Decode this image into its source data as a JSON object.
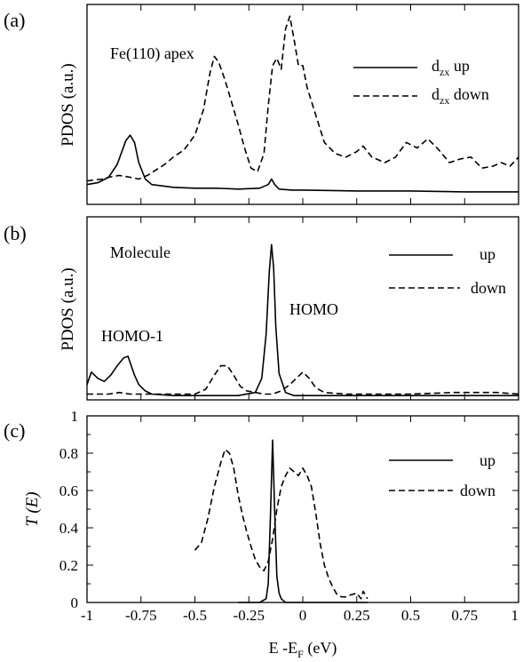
{
  "figure": {
    "xlabel_main": "E -E",
    "xlabel_sub": "F",
    "xlabel_unit": " (eV)",
    "x_ticks": [
      "-1",
      "-0.75",
      "-0.5",
      "-0.25",
      "0",
      "0.25",
      "0.5",
      "0.75",
      "1"
    ]
  },
  "chart_data": [
    {
      "type": "line",
      "panel_label": "(a)",
      "annotation": "Fe(110) apex",
      "ylabel": "PDOS (a.u.)",
      "xlim": [
        -1,
        1
      ],
      "ylim": [
        0,
        1
      ],
      "legend_position": "top-right",
      "legend": [
        {
          "main": "d",
          "sub": "zx",
          "suffix": " up",
          "style": "solid"
        },
        {
          "main": "d",
          "sub": "zx",
          "suffix": " down",
          "style": "dashed"
        }
      ],
      "series": [
        {
          "name": "dzx up",
          "style": "solid",
          "x": [
            -1,
            -0.95,
            -0.9,
            -0.86,
            -0.82,
            -0.8,
            -0.78,
            -0.76,
            -0.73,
            -0.7,
            -0.6,
            -0.5,
            -0.4,
            -0.3,
            -0.2,
            -0.16,
            -0.145,
            -0.13,
            -0.11,
            -0.05,
            0,
            0.25,
            0.5,
            0.75,
            1
          ],
          "y": [
            0.05,
            0.06,
            0.09,
            0.16,
            0.29,
            0.32,
            0.28,
            0.17,
            0.08,
            0.05,
            0.035,
            0.03,
            0.03,
            0.025,
            0.03,
            0.05,
            0.08,
            0.05,
            0.025,
            0.02,
            0.02,
            0.015,
            0.015,
            0.01,
            0.01
          ]
        },
        {
          "name": "dzx down",
          "style": "dashed",
          "x": [
            -1,
            -0.93,
            -0.9,
            -0.85,
            -0.8,
            -0.76,
            -0.72,
            -0.68,
            -0.64,
            -0.6,
            -0.55,
            -0.5,
            -0.46,
            -0.43,
            -0.41,
            -0.39,
            -0.36,
            -0.33,
            -0.3,
            -0.27,
            -0.24,
            -0.21,
            -0.18,
            -0.16,
            -0.14,
            -0.12,
            -0.1,
            -0.08,
            -0.06,
            -0.04,
            -0.02,
            0,
            0.02,
            0.06,
            0.1,
            0.15,
            0.2,
            0.25,
            0.28,
            0.32,
            0.38,
            0.43,
            0.48,
            0.53,
            0.58,
            0.63,
            0.68,
            0.73,
            0.78,
            0.83,
            0.88,
            0.92,
            0.96,
            1
          ],
          "y": [
            0.07,
            0.08,
            0.09,
            0.1,
            0.09,
            0.08,
            0.1,
            0.13,
            0.16,
            0.2,
            0.24,
            0.32,
            0.46,
            0.66,
            0.75,
            0.72,
            0.62,
            0.5,
            0.38,
            0.25,
            0.14,
            0.12,
            0.22,
            0.48,
            0.7,
            0.74,
            0.68,
            0.9,
            0.97,
            0.84,
            0.7,
            0.7,
            0.58,
            0.43,
            0.28,
            0.22,
            0.2,
            0.23,
            0.26,
            0.2,
            0.17,
            0.2,
            0.28,
            0.25,
            0.3,
            0.24,
            0.17,
            0.19,
            0.2,
            0.14,
            0.15,
            0.17,
            0.15,
            0.2
          ]
        }
      ]
    },
    {
      "type": "line",
      "panel_label": "(b)",
      "annotation": "Molecule",
      "ylabel": "PDOS (a.u.)",
      "peak_labels": [
        "HOMO-1",
        "HOMO"
      ],
      "xlim": [
        -1,
        1
      ],
      "ylim": [
        0,
        1
      ],
      "legend_position": "top-right",
      "legend": [
        {
          "main": "up",
          "sub": "",
          "suffix": "",
          "style": "solid"
        },
        {
          "main": "down",
          "sub": "",
          "suffix": "",
          "style": "dashed"
        }
      ],
      "series": [
        {
          "name": "up",
          "style": "solid",
          "x": [
            -1,
            -0.98,
            -0.95,
            -0.92,
            -0.89,
            -0.86,
            -0.83,
            -0.81,
            -0.8,
            -0.78,
            -0.76,
            -0.73,
            -0.7,
            -0.6,
            -0.5,
            -0.4,
            -0.3,
            -0.22,
            -0.19,
            -0.17,
            -0.155,
            -0.145,
            -0.135,
            -0.125,
            -0.11,
            -0.08,
            -0.04,
            0,
            0.1,
            0.3,
            0.5,
            0.7,
            0.9,
            1
          ],
          "y": [
            0.08,
            0.16,
            0.12,
            0.1,
            0.14,
            0.2,
            0.25,
            0.26,
            0.22,
            0.14,
            0.08,
            0.04,
            0.02,
            0.01,
            0.01,
            0.01,
            0.01,
            0.03,
            0.12,
            0.4,
            0.8,
            0.97,
            0.82,
            0.45,
            0.15,
            0.03,
            0.01,
            0.01,
            0.01,
            0.01,
            0.01,
            0.01,
            0.01,
            0.01
          ]
        },
        {
          "name": "down",
          "style": "dashed",
          "x": [
            -1,
            -0.95,
            -0.9,
            -0.85,
            -0.8,
            -0.75,
            -0.7,
            -0.6,
            -0.5,
            -0.45,
            -0.41,
            -0.38,
            -0.35,
            -0.32,
            -0.29,
            -0.26,
            -0.22,
            -0.18,
            -0.14,
            -0.1,
            -0.06,
            -0.03,
            0,
            0.03,
            0.06,
            0.1,
            0.2,
            0.3,
            0.5,
            0.7,
            0.9,
            1
          ],
          "y": [
            0.02,
            0.02,
            0.02,
            0.03,
            0.02,
            0.02,
            0.02,
            0.02,
            0.02,
            0.05,
            0.14,
            0.2,
            0.2,
            0.14,
            0.07,
            0.04,
            0.03,
            0.02,
            0.02,
            0.04,
            0.08,
            0.12,
            0.16,
            0.12,
            0.06,
            0.03,
            0.02,
            0.02,
            0.02,
            0.03,
            0.03,
            0.02
          ]
        }
      ]
    },
    {
      "type": "line",
      "panel_label": "(c)",
      "ylabel": "T (E)",
      "xlabel": "E -EF (eV)",
      "xlim": [
        -1,
        1
      ],
      "ylim": [
        0,
        1
      ],
      "y_ticks": [
        "0",
        "0.2",
        "0.4",
        "0.6",
        "0.8",
        "1"
      ],
      "legend_position": "top-right",
      "legend": [
        {
          "main": "up",
          "sub": "",
          "suffix": "",
          "style": "solid"
        },
        {
          "main": "down",
          "sub": "",
          "suffix": "",
          "style": "dashed"
        }
      ],
      "series": [
        {
          "name": "up",
          "style": "solid",
          "x": [
            -0.3,
            -0.2,
            -0.17,
            -0.16,
            -0.15,
            -0.14,
            -0.13,
            -0.12,
            -0.11,
            -0.1,
            -0.08,
            0,
            0.3
          ],
          "y": [
            0,
            0,
            0.02,
            0.1,
            0.45,
            0.87,
            0.48,
            0.14,
            0.05,
            0.02,
            0,
            0,
            0
          ]
        },
        {
          "name": "down",
          "style": "dashed",
          "x": [
            -0.5,
            -0.47,
            -0.44,
            -0.41,
            -0.38,
            -0.36,
            -0.34,
            -0.32,
            -0.3,
            -0.28,
            -0.26,
            -0.24,
            -0.22,
            -0.2,
            -0.18,
            -0.16,
            -0.14,
            -0.12,
            -0.1,
            -0.08,
            -0.06,
            -0.04,
            -0.02,
            0,
            0.02,
            0.04,
            0.06,
            0.08,
            0.1,
            0.12,
            0.14,
            0.16,
            0.18,
            0.2,
            0.22,
            0.25,
            0.27,
            0.28,
            0.3
          ],
          "y": [
            0.28,
            0.32,
            0.45,
            0.62,
            0.75,
            0.82,
            0.8,
            0.72,
            0.58,
            0.47,
            0.38,
            0.3,
            0.23,
            0.19,
            0.17,
            0.22,
            0.34,
            0.5,
            0.62,
            0.68,
            0.72,
            0.7,
            0.68,
            0.72,
            0.68,
            0.62,
            0.48,
            0.32,
            0.2,
            0.13,
            0.08,
            0.04,
            0.03,
            0.03,
            0.04,
            0.05,
            0.02,
            0.06,
            0.02
          ]
        }
      ]
    }
  ]
}
